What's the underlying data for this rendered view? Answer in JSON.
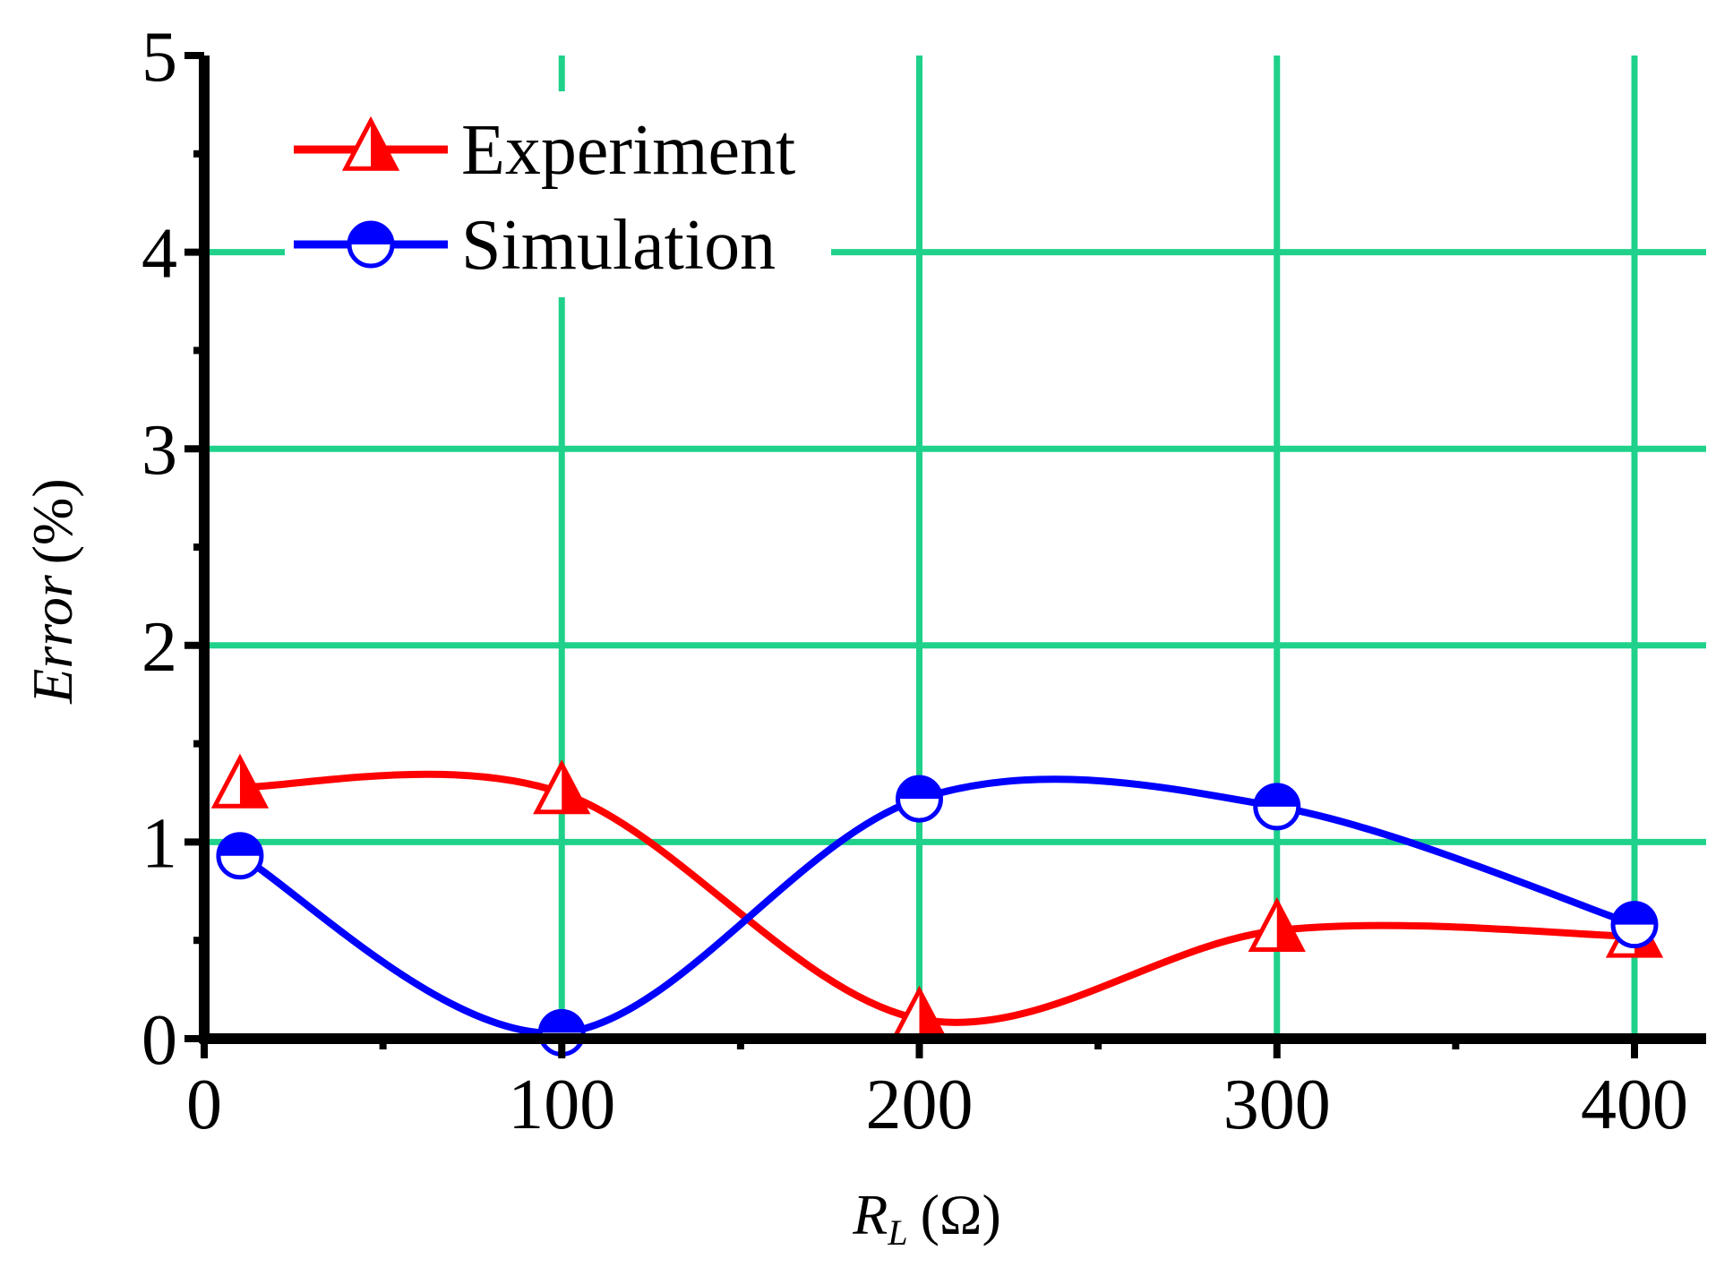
{
  "chart_data": {
    "type": "line",
    "title": "",
    "xlabel": {
      "main": "R",
      "sub": "L",
      "unit": "(Ω)"
    },
    "ylabel": {
      "main": "Error",
      "unit": "(%)"
    },
    "xlim": [
      0,
      420
    ],
    "ylim": [
      0,
      5
    ],
    "xticks": [
      0,
      100,
      200,
      300,
      400
    ],
    "yticks": [
      0,
      1,
      2,
      3,
      4,
      5
    ],
    "xtick_labels": [
      "0",
      "100",
      "200",
      "300",
      "400"
    ],
    "ytick_labels": [
      "0",
      "1",
      "2",
      "3",
      "4",
      "5"
    ],
    "grid": true,
    "grid_color": "#1fd18a",
    "legend_position": "top-left",
    "series": [
      {
        "name": "Experiment",
        "color": "#ff0000",
        "marker": "triangle-half",
        "x": [
          10,
          100,
          200,
          300,
          400
        ],
        "values": [
          1.28,
          1.25,
          0.1,
          0.55,
          0.52
        ]
      },
      {
        "name": "Simulation",
        "color": "#0000ff",
        "marker": "circle-half",
        "x": [
          10,
          100,
          200,
          300,
          400
        ],
        "values": [
          0.93,
          0.03,
          1.22,
          1.18,
          0.58
        ]
      }
    ]
  }
}
